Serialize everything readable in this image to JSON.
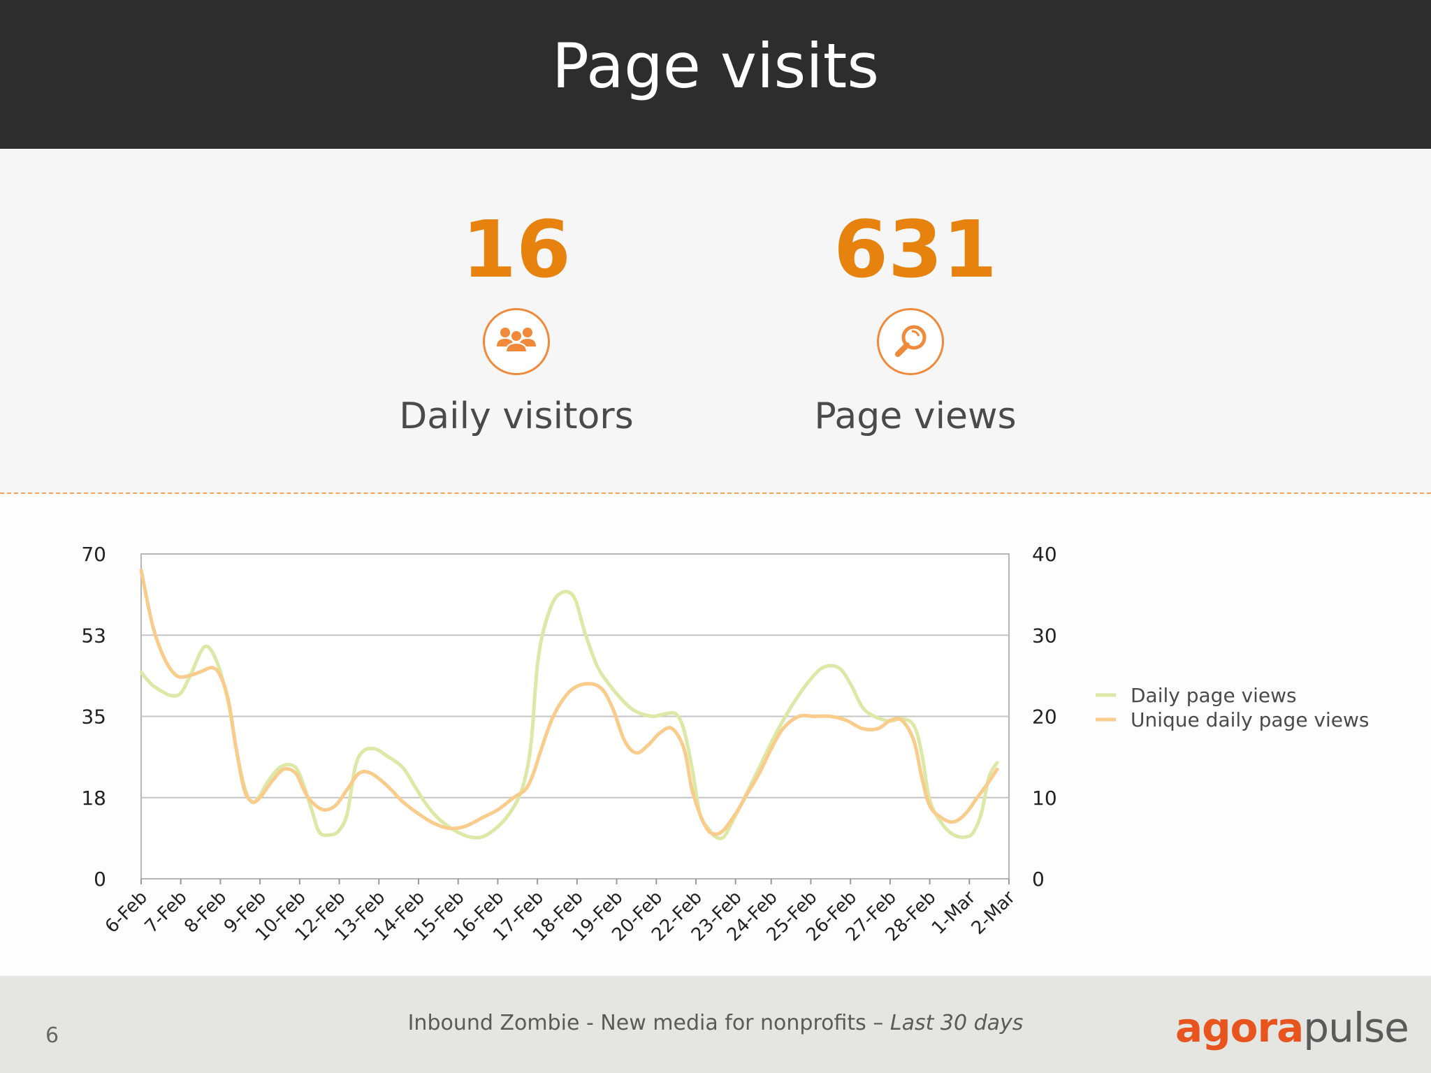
{
  "header": {
    "title": "Page visits"
  },
  "stats": [
    {
      "value": "16",
      "label": "Daily visitors",
      "icon": "group-icon"
    },
    {
      "value": "631",
      "label": "Page views",
      "icon": "magnifier-icon"
    }
  ],
  "colors": {
    "accent": "#e8820e",
    "series_views": "#dde8a6",
    "series_unique": "#f9cc8c"
  },
  "chart_data": {
    "type": "line",
    "categories": [
      "6-Feb",
      "7-Feb",
      "8-Feb",
      "9-Feb",
      "10-Feb",
      "12-Feb",
      "13-Feb",
      "14-Feb",
      "15-Feb",
      "16-Feb",
      "17-Feb",
      "18-Feb",
      "19-Feb",
      "20-Feb",
      "22-Feb",
      "23-Feb",
      "24-Feb",
      "25-Feb",
      "26-Feb",
      "27-Feb",
      "28-Feb",
      "1-Mar",
      "2-Mar"
    ],
    "x": [
      0,
      1,
      2,
      3,
      4,
      5,
      6,
      7,
      8,
      9,
      10,
      11,
      12,
      13,
      14,
      15,
      15.9,
      16.9,
      17.9,
      18.9,
      19.9,
      20.9,
      21.9
    ],
    "series": [
      {
        "name": "Daily page views",
        "axis": "left",
        "points": [
          [
            0,
            44.5
          ],
          [
            0.25,
            42
          ],
          [
            0.5,
            40.5
          ],
          [
            0.75,
            39.5
          ],
          [
            1,
            40
          ],
          [
            1.25,
            44
          ],
          [
            1.6,
            50
          ],
          [
            1.9,
            47
          ],
          [
            2.2,
            38
          ],
          [
            2.4,
            28
          ],
          [
            2.6,
            20
          ],
          [
            2.8,
            16.5
          ],
          [
            3.0,
            18
          ],
          [
            3.2,
            21
          ],
          [
            3.5,
            24
          ],
          [
            3.8,
            24.5
          ],
          [
            4.0,
            22.5
          ],
          [
            4.3,
            15
          ],
          [
            4.5,
            10
          ],
          [
            4.8,
            9.5
          ],
          [
            5.0,
            10.5
          ],
          [
            5.2,
            14
          ],
          [
            5.4,
            24
          ],
          [
            5.6,
            27.5
          ],
          [
            5.9,
            28
          ],
          [
            6.2,
            26.5
          ],
          [
            6.6,
            24
          ],
          [
            6.9,
            20
          ],
          [
            7.2,
            16
          ],
          [
            7.5,
            13
          ],
          [
            7.8,
            11
          ],
          [
            8.0,
            10
          ],
          [
            8.3,
            9
          ],
          [
            8.6,
            9
          ],
          [
            8.9,
            10.5
          ],
          [
            9.2,
            13
          ],
          [
            9.5,
            17
          ],
          [
            9.7,
            22
          ],
          [
            9.85,
            30
          ],
          [
            10.0,
            46
          ],
          [
            10.2,
            55
          ],
          [
            10.5,
            61
          ],
          [
            10.9,
            61
          ],
          [
            11.2,
            53
          ],
          [
            11.5,
            46
          ],
          [
            11.8,
            42
          ],
          [
            12.2,
            38
          ],
          [
            12.5,
            36
          ],
          [
            12.9,
            35
          ],
          [
            13.2,
            35.5
          ],
          [
            13.5,
            35.5
          ],
          [
            13.7,
            32
          ],
          [
            13.9,
            24
          ],
          [
            14.1,
            14
          ],
          [
            14.3,
            11
          ],
          [
            14.5,
            9
          ],
          [
            14.7,
            9
          ],
          [
            14.9,
            12
          ],
          [
            15.2,
            17
          ],
          [
            15.6,
            24
          ],
          [
            16.0,
            31
          ],
          [
            16.4,
            37
          ],
          [
            16.8,
            42
          ],
          [
            17.2,
            45.5
          ],
          [
            17.6,
            45.5
          ],
          [
            17.9,
            42
          ],
          [
            18.2,
            37
          ],
          [
            18.5,
            35
          ],
          [
            18.9,
            34
          ],
          [
            19.2,
            34.5
          ],
          [
            19.5,
            33
          ],
          [
            19.7,
            27
          ],
          [
            19.9,
            17
          ],
          [
            20.2,
            12
          ],
          [
            20.5,
            9.5
          ],
          [
            20.8,
            9
          ],
          [
            21.0,
            10
          ],
          [
            21.2,
            14
          ],
          [
            21.4,
            22
          ],
          [
            21.6,
            25
          ]
        ]
      },
      {
        "name": "Unique daily page views",
        "axis": "right",
        "points": [
          [
            0,
            38
          ],
          [
            0.3,
            31
          ],
          [
            0.6,
            27
          ],
          [
            0.9,
            25
          ],
          [
            1.2,
            25
          ],
          [
            1.5,
            25.5
          ],
          [
            1.8,
            26
          ],
          [
            2.0,
            25
          ],
          [
            2.2,
            22
          ],
          [
            2.4,
            16
          ],
          [
            2.6,
            11
          ],
          [
            2.8,
            9.5
          ],
          [
            3.0,
            10
          ],
          [
            3.3,
            12
          ],
          [
            3.6,
            13.5
          ],
          [
            3.9,
            13
          ],
          [
            4.1,
            11
          ],
          [
            4.3,
            9.5
          ],
          [
            4.6,
            8.5
          ],
          [
            4.9,
            9
          ],
          [
            5.2,
            11
          ],
          [
            5.5,
            13
          ],
          [
            5.8,
            13
          ],
          [
            6.2,
            11.5
          ],
          [
            6.6,
            9.5
          ],
          [
            7.0,
            8
          ],
          [
            7.4,
            6.8
          ],
          [
            7.8,
            6.2
          ],
          [
            8.2,
            6.5
          ],
          [
            8.6,
            7.5
          ],
          [
            9.0,
            8.5
          ],
          [
            9.4,
            10
          ],
          [
            9.7,
            11
          ],
          [
            9.9,
            13
          ],
          [
            10.1,
            16
          ],
          [
            10.4,
            20
          ],
          [
            10.8,
            23
          ],
          [
            11.2,
            24
          ],
          [
            11.6,
            23.5
          ],
          [
            11.9,
            21
          ],
          [
            12.2,
            17
          ],
          [
            12.5,
            15.5
          ],
          [
            12.8,
            16.5
          ],
          [
            13.1,
            18
          ],
          [
            13.4,
            18.5
          ],
          [
            13.7,
            16
          ],
          [
            13.9,
            11
          ],
          [
            14.1,
            8
          ],
          [
            14.3,
            6
          ],
          [
            14.5,
            5.5
          ],
          [
            14.7,
            6
          ],
          [
            15.0,
            8
          ],
          [
            15.3,
            10.5
          ],
          [
            15.6,
            13
          ],
          [
            15.9,
            16
          ],
          [
            16.2,
            18.5
          ],
          [
            16.6,
            20
          ],
          [
            17.0,
            20
          ],
          [
            17.4,
            20
          ],
          [
            17.8,
            19.5
          ],
          [
            18.2,
            18.5
          ],
          [
            18.6,
            18.5
          ],
          [
            18.9,
            19.5
          ],
          [
            19.2,
            19.5
          ],
          [
            19.5,
            17
          ],
          [
            19.7,
            12.5
          ],
          [
            19.9,
            9
          ],
          [
            20.2,
            7.5
          ],
          [
            20.5,
            7
          ],
          [
            20.8,
            8
          ],
          [
            21.1,
            10
          ],
          [
            21.4,
            12
          ],
          [
            21.6,
            13.5
          ]
        ]
      }
    ],
    "y_left": {
      "ticks": [
        "0",
        "18",
        "35",
        "53",
        "70"
      ],
      "ylim": [
        0,
        70
      ]
    },
    "y_right": {
      "ticks": [
        "0",
        "10",
        "20",
        "30",
        "40"
      ],
      "ylim": [
        0,
        40
      ]
    },
    "grid": true,
    "legend": "right"
  },
  "footer": {
    "page_number": "6",
    "caption_main": "Inbound Zombie - New media for nonprofits – ",
    "caption_italic": "Last 30 days",
    "logo_part1": "agora",
    "logo_part2": "pulse"
  }
}
